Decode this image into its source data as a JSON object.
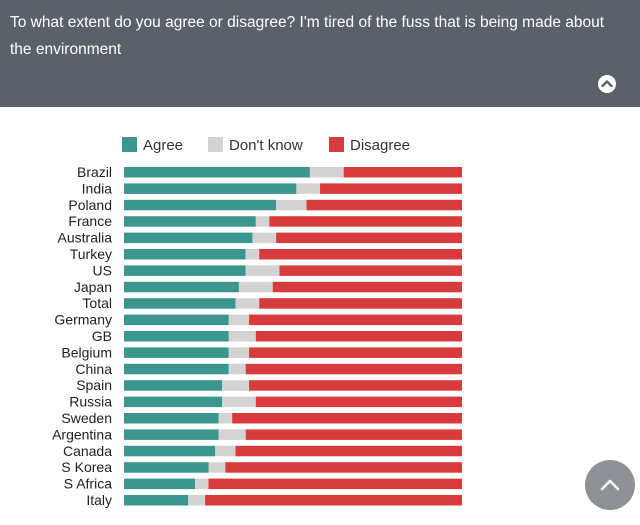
{
  "header": {
    "question": "To what extent do you agree or disagree? I'm tired of the fuss that is being made about the environment",
    "collapse_icon": "chevron-up-circle-icon",
    "background": "#5b6168"
  },
  "scroll_top": {
    "icon": "chevron-up-icon",
    "color": "#8e9196"
  },
  "chart_data": {
    "type": "bar",
    "orientation": "horizontal",
    "stacked": true,
    "normalized": true,
    "title": "",
    "xlabel": "",
    "ylabel": "",
    "legend_position": "top",
    "categories": [
      "Brazil",
      "India",
      "Poland",
      "France",
      "Australia",
      "Turkey",
      "US",
      "Japan",
      "Total",
      "Germany",
      "GB",
      "Belgium",
      "China",
      "Spain",
      "Russia",
      "Sweden",
      "Argentina",
      "Canada",
      "S Korea",
      "S Africa",
      "Italy"
    ],
    "series": [
      {
        "name": "Agree",
        "color": "#3a968f",
        "values": [
          55,
          51,
          45,
          39,
          38,
          36,
          36,
          34,
          33,
          31,
          31,
          31,
          31,
          29,
          29,
          28,
          28,
          27,
          25,
          21,
          19
        ]
      },
      {
        "name": "Don't know",
        "color": "#d3d3d3",
        "values": [
          10,
          7,
          9,
          4,
          7,
          4,
          10,
          10,
          7,
          6,
          8,
          6,
          5,
          8,
          10,
          4,
          8,
          6,
          5,
          4,
          5
        ]
      },
      {
        "name": "Disagree",
        "color": "#d83b3b",
        "values": [
          35,
          42,
          46,
          57,
          55,
          60,
          54,
          56,
          60,
          63,
          61,
          63,
          64,
          63,
          61,
          68,
          64,
          67,
          70,
          75,
          76
        ]
      }
    ]
  }
}
